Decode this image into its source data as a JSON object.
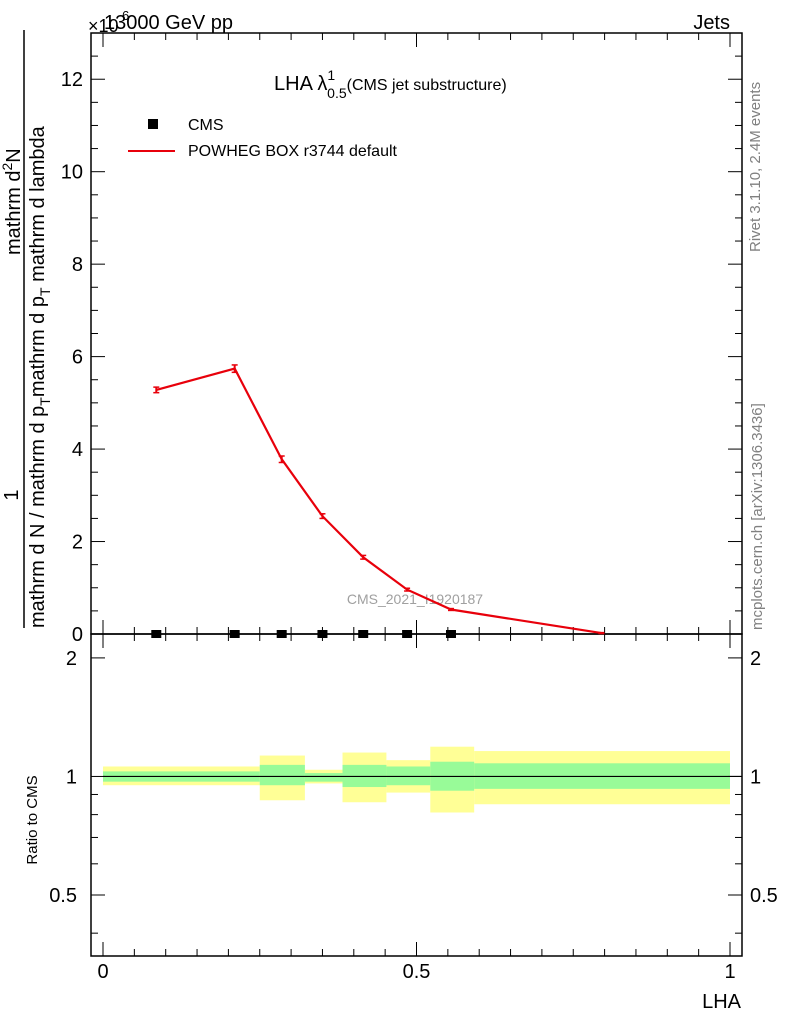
{
  "header": {
    "energy_label": "13000 GeV pp",
    "process_label": "Jets",
    "exponent_label": "×10",
    "exponent_power": "6"
  },
  "side_labels": {
    "rivet": "Rivet 3.1.10,  2.4M events",
    "mcplots": "mcplots.cern.ch [arXiv:1306.3436]"
  },
  "watermark": "CMS_2021_I1920187",
  "chart_data": [
    {
      "type": "line",
      "title": "LHA λ",
      "title_superscript": "1",
      "title_subscript": "0.5",
      "title_suffix": "(CMS jet substructure)",
      "ylabel_numerator": "1",
      "ylabel_denominator_lines": [
        "mathrm d N / mathrm d p",
        "T",
        "mathrm d p",
        "T",
        " mathrm d lambda"
      ],
      "ylabel_top": "mathrm d",
      "ylabel_top2": "2",
      "ylabel_top3": "N",
      "ylabel_parts": {
        "numerator": "1",
        "denominator": "mathrm d N / mathrm d p",
        "denominator_sub": "T",
        "top_line": "mathrm d",
        "top_sup": "2",
        "top_end": "N",
        "bottom_line": "mathrm d p",
        "bottom_sub": "T",
        "bottom_end": " mathrm d lambda"
      },
      "xlabel": "LHA",
      "xlim": [
        0,
        1
      ],
      "ylim": [
        0,
        13
      ],
      "y_multiplier": 1000000,
      "y_ticks": [
        0,
        2,
        4,
        6,
        8,
        10,
        12
      ],
      "y_tick_labels": [
        "0",
        "2",
        "4",
        "6",
        "8",
        "10",
        "12"
      ],
      "legend": [
        {
          "label": "CMS",
          "marker": "square",
          "color": "#000000"
        },
        {
          "label": "POWHEG BOX r3744 default",
          "marker": "line",
          "color": "#e8000b"
        }
      ],
      "series": [
        {
          "name": "CMS",
          "color": "#000000",
          "x": [
            0.085,
            0.21,
            0.285,
            0.35,
            0.415,
            0.485,
            0.555
          ],
          "values": [
            0.0,
            0.0,
            0.0,
            0.0,
            0.0,
            0.0,
            0.0
          ]
        },
        {
          "name": "POWHEG BOX r3744 default",
          "color": "#e8000b",
          "x": [
            0.085,
            0.21,
            0.285,
            0.35,
            0.415,
            0.485,
            0.555,
            0.795
          ],
          "values": [
            5.28,
            5.74,
            3.78,
            2.55,
            1.66,
            0.96,
            0.53,
            0.02
          ],
          "errors": [
            0.06,
            0.08,
            0.07,
            0.05,
            0.04,
            0.03,
            0.02,
            0.01
          ]
        }
      ]
    },
    {
      "type": "area",
      "title": "Ratio to CMS",
      "ylabel": "Ratio to CMS",
      "xlabel": "LHA",
      "xlim": [
        0,
        1
      ],
      "ylim": [
        0.35,
        2.3
      ],
      "y_ticks": [
        0.5,
        1,
        2
      ],
      "y_tick_labels": [
        "0.5",
        "1",
        "2"
      ],
      "x_ticks": [
        0,
        0.5,
        1
      ],
      "x_tick_labels": [
        "0",
        "0.5",
        "1"
      ],
      "reference_line": 1,
      "bands": [
        {
          "x0": 0.0,
          "x1": 0.25,
          "inner": [
            0.97,
            1.03
          ],
          "outer": [
            0.95,
            1.06
          ]
        },
        {
          "x0": 0.25,
          "x1": 0.322,
          "inner": [
            0.95,
            1.07
          ],
          "outer": [
            0.87,
            1.13
          ]
        },
        {
          "x0": 0.322,
          "x1": 0.382,
          "inner": [
            0.97,
            1.02
          ],
          "outer": [
            0.96,
            1.04
          ]
        },
        {
          "x0": 0.382,
          "x1": 0.452,
          "inner": [
            0.94,
            1.07
          ],
          "outer": [
            0.86,
            1.15
          ]
        },
        {
          "x0": 0.452,
          "x1": 0.522,
          "inner": [
            0.95,
            1.06
          ],
          "outer": [
            0.91,
            1.1
          ]
        },
        {
          "x0": 0.522,
          "x1": 0.592,
          "inner": [
            0.92,
            1.09
          ],
          "outer": [
            0.81,
            1.19
          ]
        },
        {
          "x0": 0.592,
          "x1": 1.0,
          "inner": [
            0.93,
            1.08
          ],
          "outer": [
            0.85,
            1.16
          ]
        }
      ],
      "band_colors": {
        "inner": "#98fb98",
        "outer": "#ffff96"
      }
    }
  ]
}
